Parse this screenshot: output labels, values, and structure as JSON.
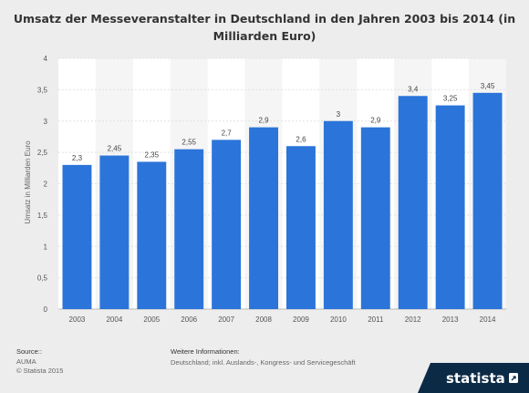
{
  "chart_data": {
    "type": "bar",
    "title": "Umsatz der Messeveranstalter in Deutschland in den Jahren 2003 bis 2014 (in Milliarden Euro)",
    "ylabel": "Umsatz in Milliarden Euro",
    "xlabel": "",
    "categories": [
      "2003",
      "2004",
      "2005",
      "2006",
      "2007",
      "2008",
      "2009",
      "2010",
      "2011",
      "2012",
      "2013",
      "2014"
    ],
    "values": [
      2.3,
      2.45,
      2.35,
      2.55,
      2.7,
      2.9,
      2.6,
      3.0,
      2.9,
      3.4,
      3.25,
      3.45
    ],
    "value_labels": [
      "2,3",
      "2,45",
      "2,35",
      "2,55",
      "2,7",
      "2,9",
      "2,6",
      "3",
      "2,9",
      "3,4",
      "3,25",
      "3,45"
    ],
    "ylim": [
      0,
      4
    ],
    "yticks": [
      0,
      0.5,
      1,
      1.5,
      2,
      2.5,
      3,
      3.5,
      4
    ],
    "ytick_labels": [
      "0",
      "0,5",
      "1",
      "1,5",
      "2",
      "2,5",
      "3",
      "3,5",
      "4"
    ],
    "bar_color": "#2b74d9",
    "grid": true
  },
  "footer": {
    "source_label": "Source::",
    "source_lines": [
      "AUMA",
      "© Statista 2015"
    ],
    "info_title": "Weitere Informationen:",
    "info_text": "Deutschland; inkl. Auslands-, Kongress- und Servicegeschäft"
  },
  "brand": {
    "name": "statista",
    "bg_color": "#0b2a45"
  }
}
